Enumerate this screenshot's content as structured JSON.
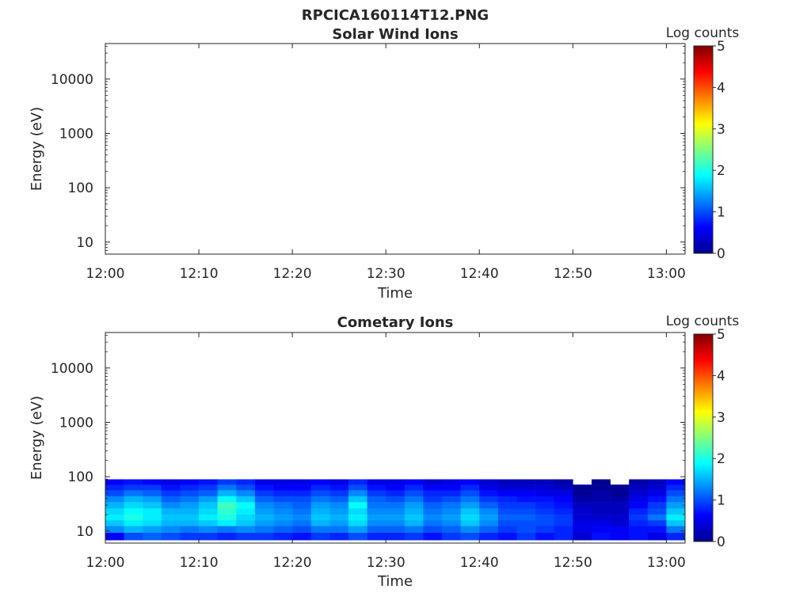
{
  "figure": {
    "title": "RPCICA160114T12.PNG"
  },
  "chart_data": [
    {
      "type": "heatmap",
      "title": "Solar Wind Ions",
      "xlabel": "Time",
      "ylabel": "Energy (eV)",
      "x_ticks": [
        "12:00",
        "12:10",
        "12:20",
        "12:30",
        "12:40",
        "12:50",
        "13:00"
      ],
      "x_range": [
        "12:00",
        "13:02"
      ],
      "y_scale": "log",
      "y_range": [
        6,
        45000
      ],
      "y_ticks": [
        10,
        100,
        1000,
        10000
      ],
      "y_tick_labels": [
        "10",
        "100",
        "1000",
        "10000"
      ],
      "colorbar": {
        "label": "Log counts",
        "range": [
          0,
          5
        ],
        "ticks": [
          "0",
          "1",
          "2",
          "3",
          "4",
          "5"
        ],
        "colormap": "jet"
      },
      "data": []
    },
    {
      "type": "heatmap",
      "title": "Cometary Ions",
      "xlabel": "Time",
      "ylabel": "Energy (eV)",
      "x_ticks": [
        "12:00",
        "12:10",
        "12:20",
        "12:30",
        "12:40",
        "12:50",
        "13:00"
      ],
      "x_range": [
        "12:00",
        "13:02"
      ],
      "y_scale": "log",
      "y_range": [
        6,
        45000
      ],
      "y_ticks": [
        10,
        100,
        1000,
        10000
      ],
      "y_tick_labels": [
        "10",
        "100",
        "1000",
        "10000"
      ],
      "colorbar": {
        "label": "Log counts",
        "range": [
          0,
          5
        ],
        "ticks": [
          "0",
          "1",
          "2",
          "3",
          "4",
          "5"
        ],
        "colormap": "jet"
      },
      "data": {
        "energy_bands_eV": [
          8,
          11,
          14,
          18,
          23,
          30,
          39,
          50,
          64,
          80
        ],
        "time_bins": [
          "12:00",
          "12:02",
          "12:04",
          "12:06",
          "12:08",
          "12:10",
          "12:12",
          "12:14",
          "12:16",
          "12:18",
          "12:20",
          "12:22",
          "12:24",
          "12:26",
          "12:28",
          "12:30",
          "12:32",
          "12:34",
          "12:36",
          "12:38",
          "12:40",
          "12:42",
          "12:44",
          "12:46",
          "12:48",
          "12:50",
          "12:52",
          "12:54",
          "12:56",
          "12:58",
          "13:00"
        ],
        "log_counts": [
          [
            0.6,
            1.0,
            1.1,
            1.0,
            0.9,
            0.9,
            0.8,
            0.9,
            0.9,
            0.8,
            0.7,
            0.9,
            0.8,
            1.0,
            0.8,
            0.8,
            0.9,
            0.7,
            0.9,
            1.0,
            0.8,
            0.7,
            0.9,
            0.7,
            0.8,
            0.4,
            0.7,
            0.6,
            0.7,
            0.5,
            0.8
          ],
          [
            1.3,
            1.5,
            1.4,
            1.3,
            1.2,
            1.3,
            1.2,
            1.3,
            1.2,
            1.1,
            1.0,
            1.2,
            1.2,
            1.4,
            1.1,
            1.1,
            1.2,
            1.0,
            1.1,
            1.3,
            1.1,
            0.9,
            1.0,
            0.9,
            0.8,
            0.5,
            0.6,
            0.6,
            0.7,
            0.7,
            1.2
          ],
          [
            1.6,
            1.8,
            1.7,
            1.5,
            1.5,
            1.6,
            1.8,
            1.6,
            1.4,
            1.3,
            1.2,
            1.5,
            1.4,
            1.7,
            1.3,
            1.3,
            1.5,
            1.2,
            1.3,
            1.6,
            1.3,
            1.0,
            1.0,
            1.0,
            0.9,
            0.5,
            0.5,
            0.4,
            0.8,
            0.9,
            1.6
          ],
          [
            1.8,
            2.0,
            1.8,
            1.6,
            1.6,
            1.8,
            2.0,
            1.7,
            1.5,
            1.4,
            1.3,
            1.6,
            1.5,
            1.8,
            1.4,
            1.4,
            1.6,
            1.3,
            1.4,
            1.7,
            1.4,
            1.1,
            1.1,
            1.0,
            0.9,
            0.4,
            0.4,
            0.4,
            0.9,
            1.2,
            1.8
          ],
          [
            1.7,
            1.9,
            1.8,
            1.5,
            1.5,
            1.7,
            2.1,
            1.8,
            1.4,
            1.3,
            1.2,
            1.5,
            1.4,
            1.7,
            1.3,
            1.3,
            1.5,
            1.2,
            1.3,
            1.6,
            1.3,
            1.0,
            1.0,
            0.9,
            0.8,
            0.4,
            0.3,
            0.3,
            0.8,
            1.0,
            1.6
          ],
          [
            1.5,
            1.7,
            1.6,
            1.3,
            1.4,
            1.6,
            2.2,
            1.9,
            1.3,
            1.2,
            1.1,
            1.4,
            1.3,
            1.9,
            1.2,
            1.2,
            1.4,
            1.1,
            1.2,
            1.4,
            1.1,
            0.9,
            0.9,
            0.8,
            0.7,
            0.3,
            0.3,
            0.3,
            0.6,
            0.9,
            1.4
          ],
          [
            1.3,
            1.5,
            1.4,
            1.1,
            1.2,
            1.4,
            1.9,
            1.6,
            1.1,
            1.0,
            1.0,
            1.2,
            1.1,
            1.6,
            1.1,
            1.0,
            1.2,
            0.9,
            1.0,
            1.2,
            0.9,
            0.8,
            0.7,
            0.7,
            0.6,
            0.2,
            0.2,
            0.2,
            0.5,
            0.7,
            1.2
          ],
          [
            1.0,
            1.2,
            1.1,
            0.9,
            1.0,
            1.1,
            1.5,
            1.3,
            0.9,
            0.8,
            0.8,
            1.0,
            0.9,
            1.3,
            0.9,
            0.8,
            1.0,
            0.8,
            0.8,
            1.0,
            0.7,
            0.6,
            0.6,
            0.5,
            0.5,
            0.1,
            0.2,
            0.1,
            0.4,
            0.5,
            1.0
          ],
          [
            0.8,
            0.9,
            0.9,
            0.7,
            0.8,
            0.9,
            1.2,
            1.0,
            0.7,
            0.6,
            0.6,
            0.8,
            0.7,
            1.0,
            0.7,
            0.6,
            0.8,
            0.6,
            0.6,
            0.8,
            0.5,
            0.4,
            0.4,
            0.4,
            0.3,
            0.1,
            0.1,
            0.1,
            0.3,
            0.4,
            0.8
          ],
          [
            0.6,
            0.7,
            0.6,
            0.5,
            0.6,
            0.7,
            0.9,
            0.8,
            0.5,
            0.5,
            0.5,
            0.6,
            0.5,
            0.8,
            0.5,
            0.5,
            0.6,
            0.4,
            0.5,
            0.6,
            0.4,
            0.3,
            0.3,
            0.3,
            0.2,
            0.0,
            0.1,
            0.0,
            0.2,
            0.3,
            0.6
          ]
        ]
      }
    }
  ]
}
